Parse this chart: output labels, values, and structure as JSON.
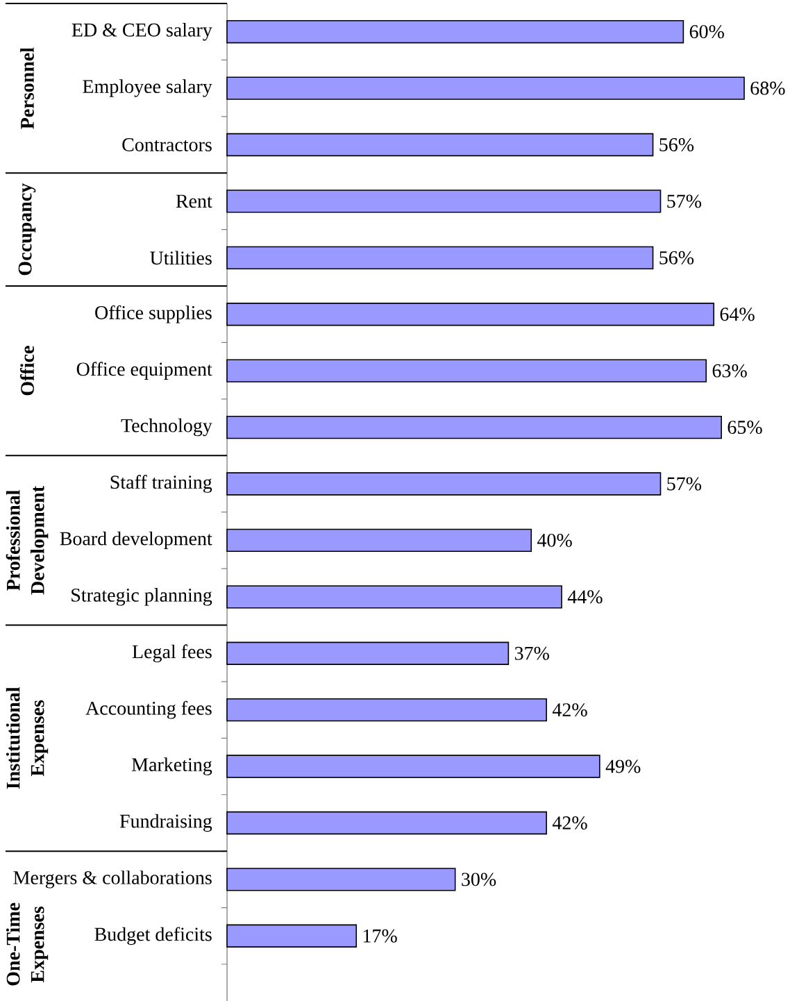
{
  "chart_data": {
    "type": "bar",
    "orientation": "horizontal",
    "categories": [
      "ED & CEO salary",
      "Employee salary",
      "Contractors",
      "Rent",
      "Utilities",
      "Office supplies",
      "Office equipment",
      "Technology",
      "Staff training",
      "Board development",
      "Strategic planning",
      "Legal fees",
      "Accounting fees",
      "Marketing",
      "Fundraising",
      "Mergers & collaborations",
      "Budget deficits"
    ],
    "values": [
      60,
      68,
      56,
      57,
      56,
      64,
      63,
      65,
      57,
      40,
      44,
      37,
      42,
      49,
      42,
      30,
      17
    ],
    "color": "#9999ff",
    "value_labels": [
      "60%",
      "68%",
      "56%",
      "57%",
      "56%",
      "64%",
      "63%",
      "65%",
      "57%",
      "40%",
      "44%",
      "37%",
      "42%",
      "49%",
      "42%",
      "30%",
      "17%"
    ],
    "annotations": [
      "Personnel",
      "Occupancy",
      "Office",
      "Professional Development",
      "Institutional Expenses",
      "One-Time Expenses"
    ]
  }
}
